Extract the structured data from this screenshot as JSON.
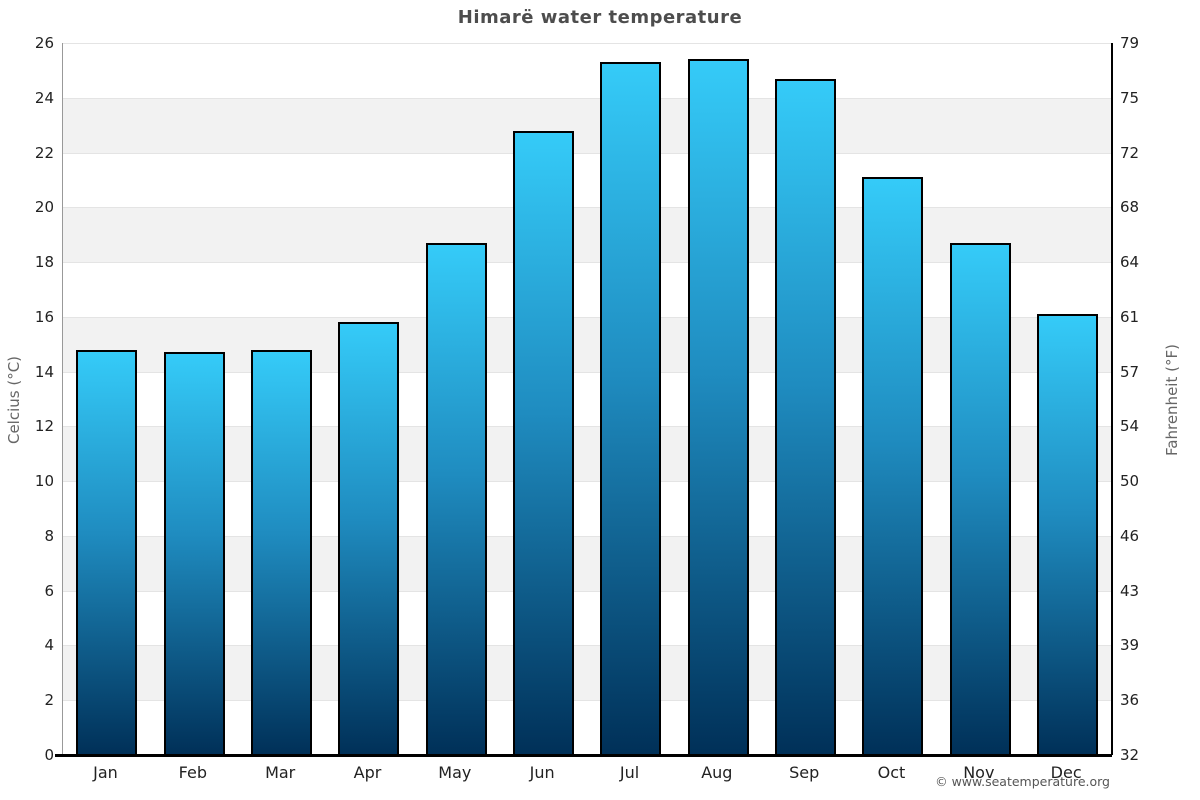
{
  "title": "Himarë water temperature",
  "copyright": "© www.seatemperature.org",
  "colors": {
    "bar_top": "#35cbf8",
    "bar_mid": "#1f8cc0",
    "bar_bottom": "#003058",
    "bar_border": "#000000",
    "band_gray": "#f2f2f2",
    "gridline": "#e4e4e4",
    "title_text": "#4d4d4d",
    "axis_title_text": "#666666",
    "tick_text": "#222222",
    "left_axis_line": "#999999",
    "right_axis_line": "#000000",
    "bottom_axis_line": "#000000"
  },
  "chart_data": {
    "type": "bar",
    "title": "Himarë water temperature",
    "categories": [
      "Jan",
      "Feb",
      "Mar",
      "Apr",
      "May",
      "Jun",
      "Jul",
      "Aug",
      "Sep",
      "Oct",
      "Nov",
      "Dec"
    ],
    "values": [
      14.8,
      14.7,
      14.8,
      15.8,
      18.7,
      22.8,
      25.3,
      25.4,
      24.7,
      21.1,
      18.7,
      16.1
    ],
    "xlabel": "",
    "ylabel": "Celcius (°C)",
    "y2label": "Fahrenheit (°F)",
    "ylim": [
      0,
      26
    ],
    "ytick_step": 2,
    "yticks": [
      0,
      2,
      4,
      6,
      8,
      10,
      12,
      14,
      16,
      18,
      20,
      22,
      24,
      26
    ],
    "y2tick_labels": [
      "32",
      "36",
      "39",
      "43",
      "46",
      "50",
      "54",
      "57",
      "61",
      "64",
      "68",
      "72",
      "75",
      "79"
    ],
    "grid": true,
    "legend": false,
    "band_fill": "alternate-gray"
  }
}
